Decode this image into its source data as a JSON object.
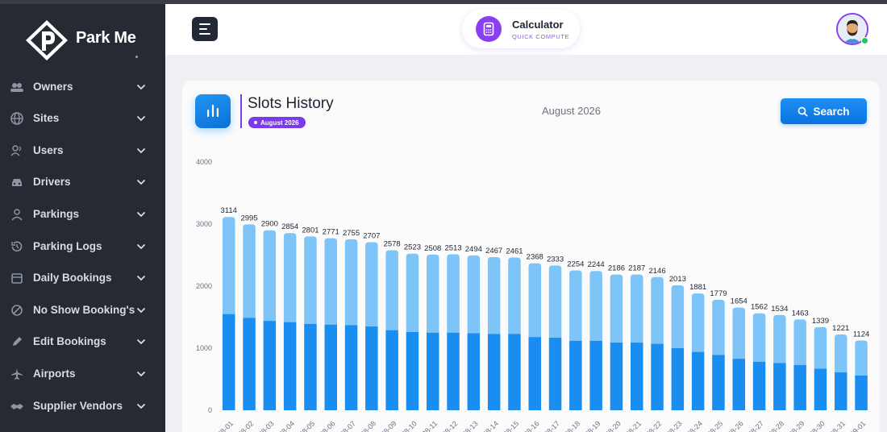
{
  "app": {
    "brand": "Park Me"
  },
  "sidebar": {
    "items": [
      {
        "label": "Owners",
        "icon": "owners-icon"
      },
      {
        "label": "Sites",
        "icon": "globe-icon"
      },
      {
        "label": "Users",
        "icon": "users-icon"
      },
      {
        "label": "Drivers",
        "icon": "car-icon"
      },
      {
        "label": "Parkings",
        "icon": "user-icon"
      },
      {
        "label": "Parking Logs",
        "icon": "history-icon"
      },
      {
        "label": "Daily Bookings",
        "icon": "calendar-icon"
      },
      {
        "label": "No Show Booking's",
        "icon": "ban-icon"
      },
      {
        "label": "Edit Bookings",
        "icon": "pencil-icon"
      },
      {
        "label": "Airports",
        "icon": "plane-icon"
      },
      {
        "label": "Supplier Vendors",
        "icon": "handshake-icon"
      }
    ]
  },
  "header": {
    "calculator": {
      "title": "Calculator",
      "subtitle": "QUICK COMPUTE"
    }
  },
  "card": {
    "title": "Slots History",
    "badge": "August 2026",
    "month_label": "August 2026",
    "search_label": "Search"
  },
  "colors": {
    "accent": "#7c3aed",
    "primary": "#1e8ff5",
    "bar_dark": "#1a8df0",
    "bar_light": "#7dc4f8"
  },
  "chart_data": {
    "type": "bar",
    "stacked": true,
    "categories": [
      "08-01",
      "08-02",
      "08-03",
      "08-04",
      "08-05",
      "08-06",
      "08-07",
      "08-08",
      "08-09",
      "08-10",
      "08-11",
      "08-12",
      "08-13",
      "08-14",
      "08-15",
      "08-16",
      "08-17",
      "08-18",
      "08-19",
      "08-20",
      "08-21",
      "08-22",
      "08-23",
      "08-24",
      "08-25",
      "08-26",
      "08-27",
      "08-28",
      "08-29",
      "08-30",
      "08-31",
      "09-01"
    ],
    "totals": [
      3114,
      2995,
      2900,
      2854,
      2801,
      2771,
      2755,
      2707,
      2578,
      2523,
      2508,
      2513,
      2494,
      2467,
      2461,
      2368,
      2333,
      2254,
      2244,
      2186,
      2187,
      2146,
      2013,
      1881,
      1779,
      1654,
      1562,
      1534,
      1463,
      1339,
      1221,
      1124
    ],
    "series": [
      {
        "values": [
          1550,
          1490,
          1440,
          1420,
          1390,
          1380,
          1370,
          1350,
          1290,
          1260,
          1250,
          1250,
          1240,
          1230,
          1230,
          1180,
          1170,
          1120,
          1120,
          1090,
          1090,
          1070,
          1000,
          940,
          890,
          830,
          780,
          760,
          730,
          670,
          610,
          560
        ]
      },
      {
        "values": [
          1564,
          1505,
          1460,
          1434,
          1411,
          1391,
          1385,
          1357,
          1288,
          1263,
          1258,
          1263,
          1254,
          1237,
          1231,
          1188,
          1163,
          1134,
          1124,
          1096,
          1097,
          1076,
          1013,
          941,
          889,
          824,
          782,
          774,
          733,
          669,
          611,
          564
        ]
      }
    ],
    "yticks": [
      0,
      1000,
      2000,
      3000,
      4000
    ],
    "ylim": [
      0,
      4000
    ],
    "grid": false,
    "legend": "none"
  }
}
